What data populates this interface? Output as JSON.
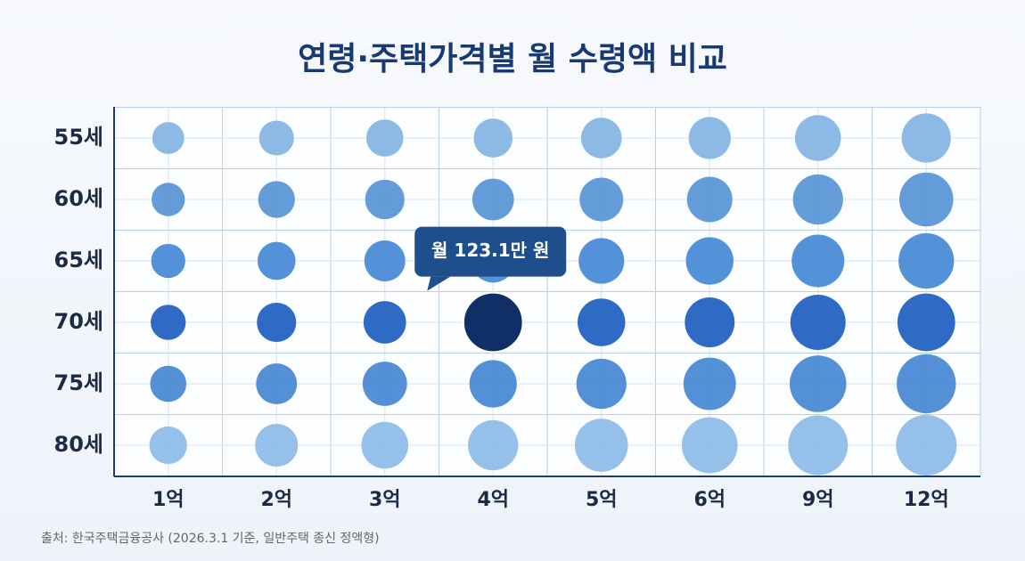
{
  "chart_data": {
    "type": "bubble-grid",
    "title": "연령·주택가격별 월 수령액 비교",
    "categories": [
      "1억",
      "2억",
      "3억",
      "4억",
      "5억",
      "6억",
      "9억",
      "12억"
    ],
    "series": [
      {
        "name": "55세",
        "color": "#86b6e3",
        "values": [
          14.6,
          29.2,
          43.9,
          58.5,
          73.1,
          87.7,
          131.6,
          175.5
        ]
      },
      {
        "name": "60세",
        "color": "#5b97d6",
        "values": [
          20.9,
          41.8,
          62.8,
          83.7,
          104.6,
          125.5,
          188.3,
          251.1
        ]
      },
      {
        "name": "65세",
        "color": "#4a8bd6",
        "values": [
          25.4,
          50.9,
          76.3,
          101.8,
          127.2,
          152.7,
          229.0,
          279.1
        ]
      },
      {
        "name": "70세",
        "color": "#2463c2",
        "values": [
          30.8,
          61.6,
          92.3,
          123.1,
          153.9,
          184.7,
          274.8,
          320.0
        ],
        "value_labels": [
          null,
          null,
          null,
          "월 123.1만 원",
          null,
          null,
          null,
          null
        ]
      },
      {
        "name": "75세",
        "color": "#4a8ad4",
        "values": [
          37.7,
          75.4,
          113.1,
          150.8,
          188.5,
          226.2,
          300.0,
          350.0
        ]
      },
      {
        "name": "80세",
        "color": "#8ebde9",
        "values": [
          47.6,
          95.2,
          142.8,
          190.5,
          238.1,
          285.7,
          360.0,
          380.0
        ]
      }
    ],
    "highlight_color": "#0f2f66",
    "source": "출처: 한국주택금융공사 (2026.3.1 기준, 일반주택 종신 정액형)"
  }
}
